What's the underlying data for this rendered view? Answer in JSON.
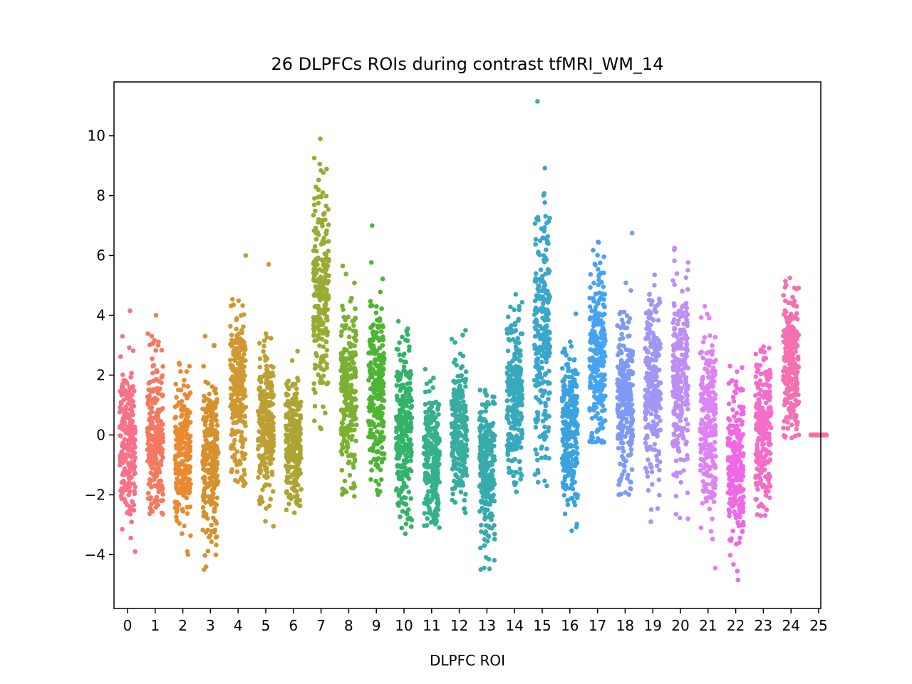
{
  "chart_data": {
    "type": "scatter",
    "subtype": "strip-plot",
    "title": "26 DLPFCs ROIs during contrast tfMRI_WM_14",
    "xlabel": "DLPFC ROI",
    "ylabel": "",
    "categories": [
      "0",
      "1",
      "2",
      "3",
      "4",
      "5",
      "6",
      "7",
      "8",
      "9",
      "10",
      "11",
      "12",
      "13",
      "14",
      "15",
      "16",
      "17",
      "18",
      "19",
      "20",
      "21",
      "22",
      "23",
      "24",
      "25"
    ],
    "yticks": [
      -4,
      -2,
      0,
      2,
      4,
      6,
      8,
      10
    ],
    "ylim": [
      -5.8,
      11.8
    ],
    "grid": false,
    "legend": "none",
    "points_per_category": 250,
    "series": [
      {
        "category": "0",
        "color": "#f77189",
        "median": -0.2,
        "q1": -1.0,
        "q3": 0.7,
        "min": -3.9,
        "max": 4.15
      },
      {
        "category": "1",
        "color": "#f37a61",
        "median": -0.1,
        "q1": -0.9,
        "q3": 0.9,
        "min": -2.65,
        "max": 4.0
      },
      {
        "category": "2",
        "color": "#e98a32",
        "median": -0.7,
        "q1": -1.5,
        "q3": 0.0,
        "min": -4.0,
        "max": 2.4
      },
      {
        "category": "3",
        "color": "#d4912e",
        "median": -0.8,
        "q1": -1.6,
        "q3": 0.1,
        "min": -4.5,
        "max": 3.3
      },
      {
        "category": "4",
        "color": "#cf9932",
        "median": 1.4,
        "q1": 0.5,
        "q3": 2.4,
        "min": -1.7,
        "max": 6.0
      },
      {
        "category": "5",
        "color": "#bca034",
        "median": 0.5,
        "q1": -0.4,
        "q3": 1.4,
        "min": -3.05,
        "max": 5.7
      },
      {
        "category": "6",
        "color": "#ada533",
        "median": -0.1,
        "q1": -0.8,
        "q3": 0.7,
        "min": -2.6,
        "max": 2.8
      },
      {
        "category": "7",
        "color": "#9aaa33",
        "median": 4.6,
        "q1": 3.4,
        "q3": 5.9,
        "min": 0.2,
        "max": 9.9
      },
      {
        "category": "8",
        "color": "#7cb032",
        "median": 1.5,
        "q1": 0.5,
        "q3": 2.6,
        "min": -2.05,
        "max": 5.65
      },
      {
        "category": "9",
        "color": "#4db533",
        "median": 1.5,
        "q1": 0.5,
        "q3": 2.5,
        "min": -2.0,
        "max": 7.0
      },
      {
        "category": "10",
        "color": "#33b36a",
        "median": 0.2,
        "q1": -0.8,
        "q3": 1.2,
        "min": -3.3,
        "max": 3.8
      },
      {
        "category": "11",
        "color": "#35b08c",
        "median": -0.8,
        "q1": -1.6,
        "q3": 0.0,
        "min": -3.1,
        "max": 2.2
      },
      {
        "category": "12",
        "color": "#36ad9e",
        "median": 0.1,
        "q1": -0.6,
        "q3": 0.9,
        "min": -2.6,
        "max": 3.5
      },
      {
        "category": "13",
        "color": "#37abac",
        "median": -1.2,
        "q1": -2.1,
        "q3": -0.3,
        "min": -4.5,
        "max": 1.5
      },
      {
        "category": "14",
        "color": "#38a9bb",
        "median": 1.1,
        "q1": 0.2,
        "q3": 2.2,
        "min": -1.9,
        "max": 4.7
      },
      {
        "category": "15",
        "color": "#3aa6cc",
        "median": 3.4,
        "q1": 2.2,
        "q3": 4.8,
        "min": -1.7,
        "max": 11.15
      },
      {
        "category": "16",
        "color": "#3ba2e0",
        "median": 0.1,
        "q1": -0.8,
        "q3": 1.0,
        "min": -3.2,
        "max": 4.05
      },
      {
        "category": "17",
        "color": "#45a3f3",
        "median": 2.7,
        "q1": 1.8,
        "q3": 3.6,
        "min": -0.25,
        "max": 6.45
      },
      {
        "category": "18",
        "color": "#7e9af4",
        "median": 1.2,
        "q1": 0.3,
        "q3": 2.3,
        "min": -2.0,
        "max": 6.75
      },
      {
        "category": "19",
        "color": "#a097f4",
        "median": 1.6,
        "q1": 0.7,
        "q3": 2.7,
        "min": -2.9,
        "max": 5.35
      },
      {
        "category": "20",
        "color": "#be8ef4",
        "median": 1.9,
        "q1": 0.9,
        "q3": 3.0,
        "min": -2.8,
        "max": 6.25
      },
      {
        "category": "21",
        "color": "#de83f3",
        "median": 0.3,
        "q1": -0.6,
        "q3": 1.3,
        "min": -4.45,
        "max": 4.3
      },
      {
        "category": "22",
        "color": "#f068e4",
        "median": -1.0,
        "q1": -1.9,
        "q3": -0.1,
        "min": -4.85,
        "max": 2.3
      },
      {
        "category": "23",
        "color": "#f46dc8",
        "median": 0.3,
        "q1": -0.5,
        "q3": 1.1,
        "min": -2.7,
        "max": 2.95
      },
      {
        "category": "24",
        "color": "#f56fb2",
        "median": 2.4,
        "q1": 1.6,
        "q3": 3.2,
        "min": -0.1,
        "max": 5.25
      },
      {
        "category": "25",
        "color": "#f6709f",
        "median": 0.0,
        "q1": 0.0,
        "q3": 0.0,
        "min": 0.0,
        "max": 0.0
      }
    ]
  }
}
